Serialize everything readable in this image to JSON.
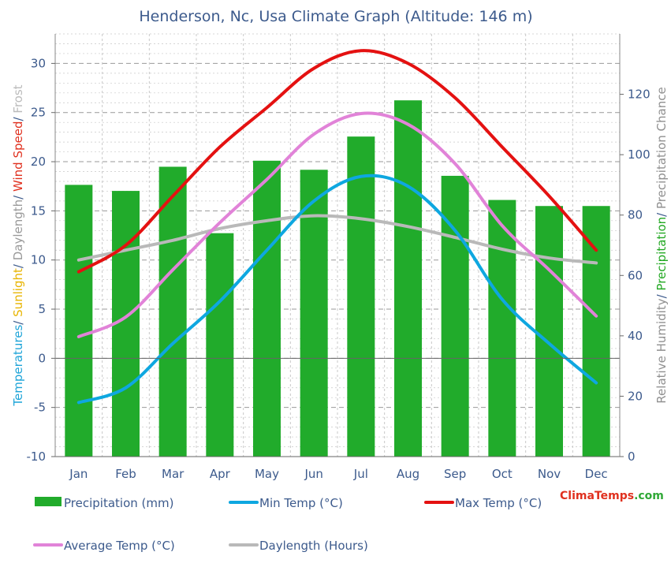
{
  "chart_data": {
    "type": "bar",
    "title": "Henderson, Nc, Usa Climate Graph (Altitude: 146 m)",
    "categories": [
      "Jan",
      "Feb",
      "Mar",
      "Apr",
      "May",
      "Jun",
      "Jul",
      "Aug",
      "Sep",
      "Oct",
      "Nov",
      "Dec"
    ],
    "left_axis": {
      "label_parts": [
        {
          "text": "Temperatures",
          "color": "#1ea4d8"
        },
        {
          "text": "/ ",
          "color": "#3c5a8c"
        },
        {
          "text": "Sunlight",
          "color": "#e8b400"
        },
        {
          "text": "/ ",
          "color": "#3c5a8c"
        },
        {
          "text": "Daylength",
          "color": "#9a9a9a"
        },
        {
          "text": "/ ",
          "color": "#3c5a8c"
        },
        {
          "text": "Wind Speed",
          "color": "#e0301e"
        },
        {
          "text": "/ ",
          "color": "#3c5a8c"
        },
        {
          "text": "Frost",
          "color": "#bbbbbb"
        }
      ],
      "ylim": [
        -10,
        33
      ],
      "ticks": [
        "-10",
        "-5",
        "0",
        "5",
        "10",
        "15",
        "20",
        "25",
        "30"
      ]
    },
    "right_axis": {
      "label_parts": [
        {
          "text": "Relative Humidity",
          "color": "#909090"
        },
        {
          "text": "/ ",
          "color": "#3c5a8c"
        },
        {
          "text": "Precipitation",
          "color": "#22a822"
        },
        {
          "text": "/ ",
          "color": "#3c5a8c"
        },
        {
          "text": "Precipitation Chance",
          "color": "#909090"
        }
      ],
      "ylim": [
        0,
        140
      ],
      "ticks": [
        "0",
        "20",
        "40",
        "60",
        "80",
        "100",
        "120"
      ]
    },
    "series": [
      {
        "name": "Precipitation (mm)",
        "kind": "bar",
        "axis": "right",
        "color": "#21ab2b",
        "values": [
          90,
          88,
          96,
          74,
          98,
          95,
          106,
          118,
          93,
          85,
          83,
          83
        ]
      },
      {
        "name": "Min Temp (°C)",
        "kind": "line",
        "axis": "left",
        "color": "#0ea7e0",
        "values": [
          -4.5,
          -3.0,
          1.5,
          5.8,
          11.0,
          16.0,
          18.5,
          17.5,
          13.0,
          6.0,
          1.5,
          -2.5
        ]
      },
      {
        "name": "Max Temp (°C)",
        "kind": "line",
        "axis": "left",
        "color": "#e41111",
        "values": [
          8.8,
          11.5,
          16.5,
          21.5,
          25.5,
          29.5,
          31.3,
          30.0,
          26.5,
          21.5,
          16.5,
          11.0
        ]
      },
      {
        "name": "Average Temp (°C)",
        "kind": "line",
        "axis": "left",
        "color": "#e183d8",
        "values": [
          2.2,
          4.2,
          9.0,
          13.8,
          18.2,
          22.8,
          24.9,
          23.8,
          19.8,
          13.5,
          9.0,
          4.3
        ]
      },
      {
        "name": "Daylength (Hours)",
        "kind": "line",
        "axis": "left",
        "color": "#b9b9b9",
        "values": [
          10.0,
          11.0,
          12.0,
          13.2,
          14.0,
          14.5,
          14.2,
          13.4,
          12.3,
          11.1,
          10.2,
          9.7
        ]
      }
    ],
    "legend": {
      "placement": "bottom",
      "items": [
        "Precipitation (mm)",
        "Min Temp (°C)",
        "Max Temp (°C)",
        "Average Temp (°C)",
        "Daylength (Hours)"
      ]
    },
    "grid": true,
    "watermark": {
      "part1": "Clima",
      "part2": "Temps",
      "part3": ".com",
      "color1": "#e0301e",
      "color2": "#2fa836"
    }
  }
}
